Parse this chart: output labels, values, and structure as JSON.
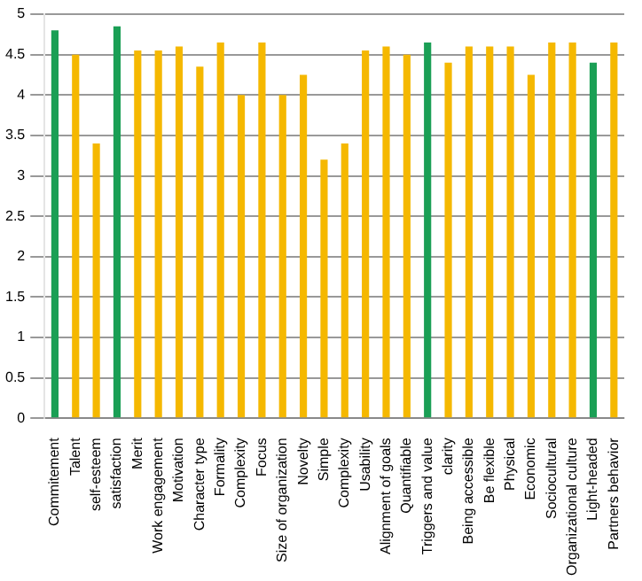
{
  "chart_data": {
    "type": "bar",
    "categories": [
      "Commitement",
      "Talent",
      "self-esteem",
      "satisfaction",
      "Merit",
      "Work engagement",
      "Motivation",
      "Character type",
      "Formality",
      "Complexity",
      "Focus",
      "Size of organization",
      "Novelty",
      "Simple",
      "Complexity",
      "Usability",
      "Alignment of goals",
      "Quantifiable",
      "Triggers and value",
      "clarity",
      "Being accessible",
      "Be flexible",
      "Physical",
      "Economic",
      "Sociocultural",
      "Organizational culture",
      "Light-headed",
      "Partners behavior"
    ],
    "values": [
      4.8,
      4.5,
      3.4,
      4.85,
      4.55,
      4.55,
      4.6,
      4.35,
      4.65,
      4.0,
      4.65,
      4.0,
      4.25,
      3.2,
      3.4,
      4.55,
      4.6,
      4.5,
      4.65,
      4.4,
      4.6,
      4.6,
      4.6,
      4.25,
      4.65,
      4.65,
      4.4,
      4.65
    ],
    "colors": [
      "#1a9f55",
      "#f5b800",
      "#f5b800",
      "#1a9f55",
      "#f5b800",
      "#f5b800",
      "#f5b800",
      "#f5b800",
      "#f5b800",
      "#f5b800",
      "#f5b800",
      "#f5b800",
      "#f5b800",
      "#f5b800",
      "#f5b800",
      "#f5b800",
      "#f5b800",
      "#f5b800",
      "#1a9f55",
      "#f5b800",
      "#f5b800",
      "#f5b800",
      "#f5b800",
      "#f5b800",
      "#f5b800",
      "#f5b800",
      "#1a9f55",
      "#f5b800"
    ],
    "ylim": [
      0,
      5
    ],
    "yticks": [
      0,
      0.5,
      1,
      1.5,
      2,
      2.5,
      3,
      3.5,
      4,
      4.5,
      5
    ],
    "grid": "y"
  }
}
